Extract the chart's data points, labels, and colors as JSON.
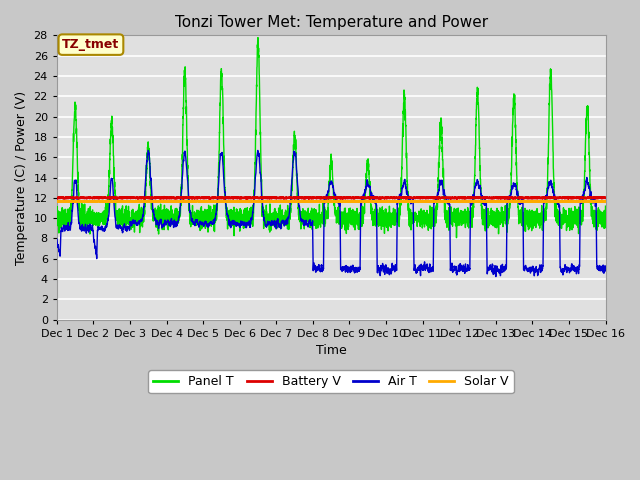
{
  "title": "Tonzi Tower Met: Temperature and Power",
  "ylabel": "Temperature (C) / Power (V)",
  "xlabel": "Time",
  "ylim": [
    0,
    28
  ],
  "xlim": [
    0,
    15
  ],
  "xtick_labels": [
    "Dec 1",
    "Dec 2",
    "Dec 3",
    "Dec 4",
    "Dec 5",
    "Dec 6",
    "Dec 7",
    "Dec 8",
    "Dec 9",
    "Dec 10",
    "Dec 11",
    "Dec 12",
    "Dec 13",
    "Dec 14",
    "Dec 15",
    "Dec 16"
  ],
  "xtick_positions": [
    0,
    1,
    2,
    3,
    4,
    5,
    6,
    7,
    8,
    9,
    10,
    11,
    12,
    13,
    14,
    15
  ],
  "fig_bg_color": "#c8c8c8",
  "plot_bg_color": "#e0e0e0",
  "annotation_label": "TZ_tmet",
  "annotation_color": "#880000",
  "annotation_bg": "#ffffcc",
  "annotation_edge": "#aa8800",
  "panel_t_color": "#00dd00",
  "battery_v_color": "#dd0000",
  "air_t_color": "#0000cc",
  "solar_v_color": "#ffaa00",
  "legend_items": [
    "Panel T",
    "Battery V",
    "Air T",
    "Solar V"
  ],
  "battery_v_value": 12.0,
  "solar_v_value": 11.65,
  "title_fontsize": 11,
  "axis_fontsize": 9,
  "tick_fontsize": 8,
  "linewidth_main": 1.0,
  "linewidth_flat": 1.5
}
